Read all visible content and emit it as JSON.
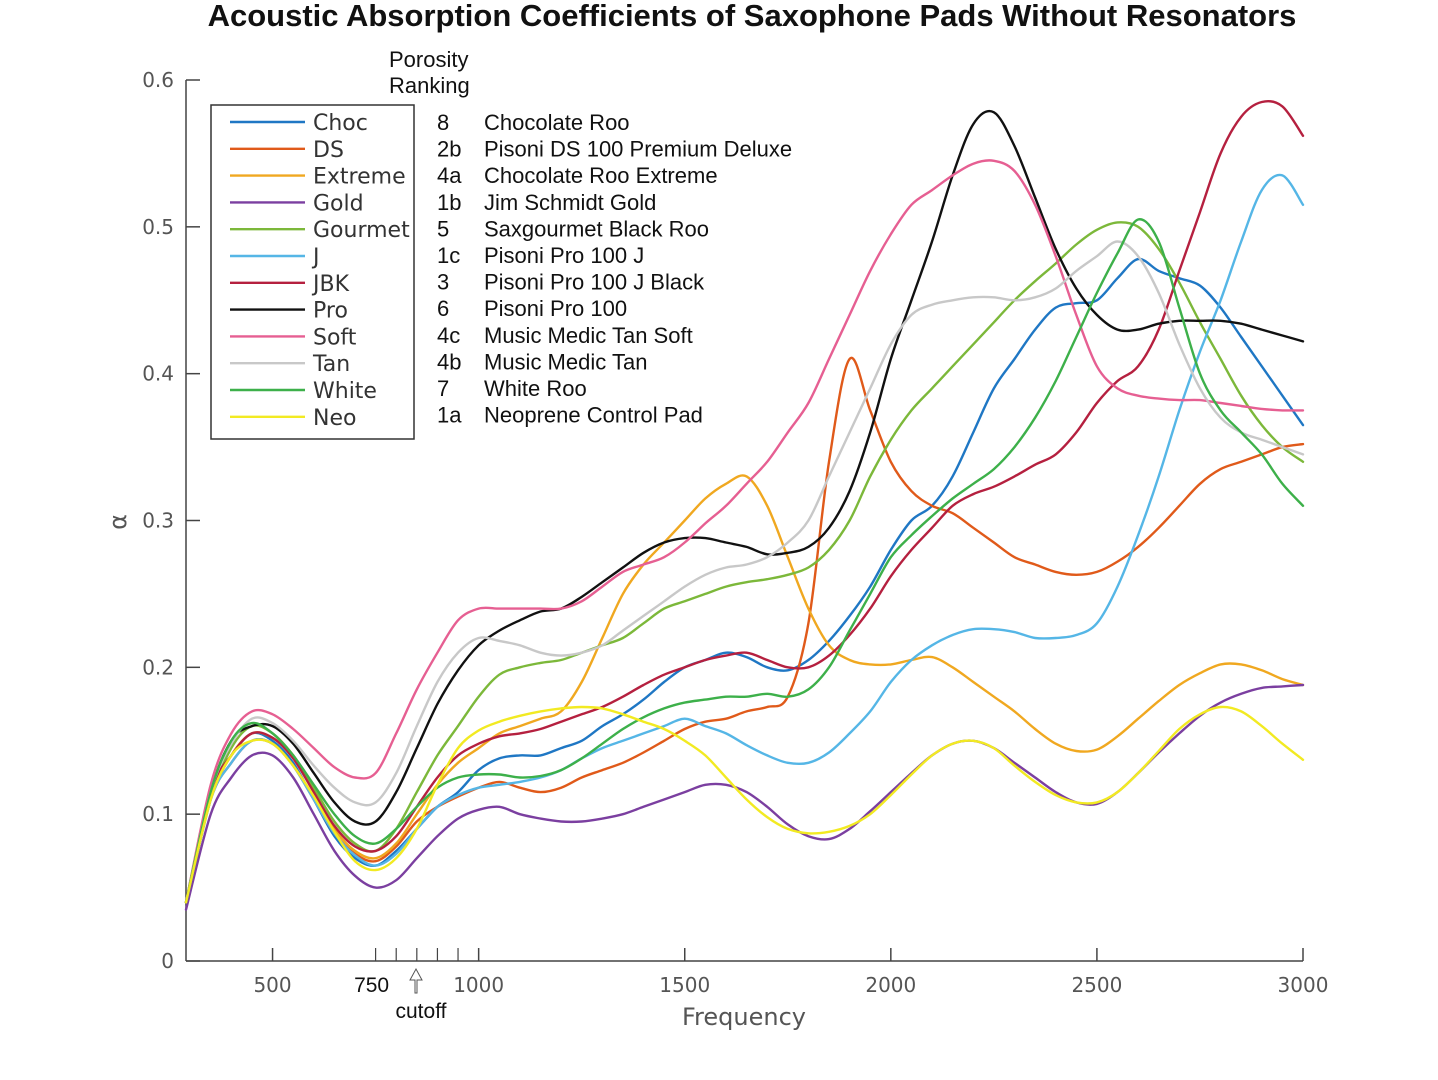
{
  "chart_data": {
    "type": "line",
    "title": "Acoustic Absorption Coefficients of Saxophone Pads Without Resonators",
    "xlabel": "Frequency",
    "ylabel": "α",
    "xlim": [
      290,
      3000
    ],
    "ylim": [
      0,
      0.6
    ],
    "x_ticks": [
      500,
      1000,
      1500,
      2000,
      2500,
      3000
    ],
    "x_tick_labels": [
      "500",
      "1000",
      "1500",
      "2000",
      "2500",
      "3000"
    ],
    "extra_x_tick_label": "750",
    "minor_x_ticks": [
      750,
      800,
      850,
      900,
      950
    ],
    "y_ticks": [
      0,
      0.1,
      0.2,
      0.3,
      0.4,
      0.5,
      0.6
    ],
    "y_tick_labels": [
      "0",
      "0.1",
      "0.2",
      "0.3",
      "0.4",
      "0.5",
      "0.6"
    ],
    "annotation_label": "cutoff",
    "annotation_x": 850,
    "ranking_title_line1": "Porosity",
    "ranking_title_line2": "Ranking",
    "legend_position": "top-left",
    "grid": false,
    "x": [
      290,
      350,
      400,
      450,
      500,
      550,
      600,
      650,
      700,
      750,
      800,
      850,
      900,
      950,
      1000,
      1050,
      1100,
      1150,
      1200,
      1250,
      1300,
      1350,
      1400,
      1450,
      1500,
      1550,
      1600,
      1650,
      1700,
      1750,
      1800,
      1850,
      1900,
      1950,
      2000,
      2050,
      2100,
      2150,
      2200,
      2250,
      2300,
      2350,
      2400,
      2450,
      2500,
      2550,
      2600,
      2650,
      2700,
      2750,
      2800,
      2850,
      2900,
      2950,
      3000
    ],
    "series": [
      {
        "name": "Choc",
        "rank": "8",
        "full_name": "Chocolate Roo",
        "color": "#1f77c4",
        "values": [
          0.04,
          0.115,
          0.14,
          0.155,
          0.15,
          0.135,
          0.11,
          0.085,
          0.07,
          0.065,
          0.075,
          0.09,
          0.105,
          0.115,
          0.13,
          0.138,
          0.14,
          0.14,
          0.145,
          0.15,
          0.16,
          0.168,
          0.178,
          0.19,
          0.2,
          0.205,
          0.21,
          0.207,
          0.2,
          0.198,
          0.205,
          0.218,
          0.235,
          0.255,
          0.28,
          0.3,
          0.31,
          0.33,
          0.36,
          0.39,
          0.41,
          0.43,
          0.445,
          0.448,
          0.45,
          0.465,
          0.478,
          0.47,
          0.465,
          0.46,
          0.445,
          0.425,
          0.405,
          0.385,
          0.365
        ]
      },
      {
        "name": "DS",
        "rank": "2b",
        "full_name": "Pisoni DS 100 Premium Deluxe",
        "color": "#e05a1a",
        "values": [
          0.04,
          0.11,
          0.135,
          0.15,
          0.148,
          0.133,
          0.11,
          0.087,
          0.073,
          0.068,
          0.078,
          0.095,
          0.105,
          0.112,
          0.118,
          0.122,
          0.118,
          0.115,
          0.118,
          0.125,
          0.13,
          0.135,
          0.142,
          0.15,
          0.158,
          0.163,
          0.165,
          0.17,
          0.173,
          0.18,
          0.23,
          0.34,
          0.41,
          0.375,
          0.34,
          0.32,
          0.31,
          0.305,
          0.295,
          0.285,
          0.275,
          0.27,
          0.265,
          0.263,
          0.265,
          0.272,
          0.282,
          0.295,
          0.31,
          0.325,
          0.335,
          0.34,
          0.345,
          0.35,
          0.352
        ]
      },
      {
        "name": "Extreme",
        "rank": "4a",
        "full_name": "Chocolate Roo Extreme",
        "color": "#f0a820",
        "values": [
          0.04,
          0.11,
          0.14,
          0.155,
          0.152,
          0.14,
          0.115,
          0.09,
          0.075,
          0.07,
          0.08,
          0.1,
          0.12,
          0.135,
          0.145,
          0.155,
          0.16,
          0.165,
          0.17,
          0.19,
          0.22,
          0.25,
          0.27,
          0.285,
          0.3,
          0.315,
          0.325,
          0.33,
          0.31,
          0.275,
          0.24,
          0.215,
          0.205,
          0.202,
          0.202,
          0.205,
          0.207,
          0.2,
          0.19,
          0.18,
          0.17,
          0.158,
          0.148,
          0.143,
          0.144,
          0.153,
          0.165,
          0.177,
          0.188,
          0.196,
          0.202,
          0.202,
          0.198,
          0.192,
          0.188
        ]
      },
      {
        "name": "Gold",
        "rank": "1b",
        "full_name": "Jim Schmidt Gold",
        "color": "#7b3fa0",
        "values": [
          0.035,
          0.1,
          0.125,
          0.14,
          0.14,
          0.125,
          0.1,
          0.075,
          0.058,
          0.05,
          0.055,
          0.07,
          0.085,
          0.097,
          0.103,
          0.105,
          0.1,
          0.097,
          0.095,
          0.095,
          0.097,
          0.1,
          0.105,
          0.11,
          0.115,
          0.12,
          0.12,
          0.115,
          0.105,
          0.093,
          0.085,
          0.083,
          0.09,
          0.102,
          0.115,
          0.128,
          0.14,
          0.148,
          0.15,
          0.145,
          0.135,
          0.125,
          0.115,
          0.108,
          0.107,
          0.115,
          0.128,
          0.142,
          0.155,
          0.167,
          0.176,
          0.182,
          0.186,
          0.187,
          0.188
        ]
      },
      {
        "name": "Gourmet",
        "rank": "5",
        "full_name": "Saxgourmet Black Roo",
        "color": "#7cb83a",
        "values": [
          0.04,
          0.11,
          0.145,
          0.16,
          0.155,
          0.14,
          0.118,
          0.095,
          0.08,
          0.075,
          0.09,
          0.115,
          0.14,
          0.16,
          0.18,
          0.195,
          0.2,
          0.203,
          0.205,
          0.21,
          0.215,
          0.22,
          0.23,
          0.24,
          0.245,
          0.25,
          0.255,
          0.258,
          0.26,
          0.263,
          0.268,
          0.28,
          0.3,
          0.33,
          0.355,
          0.375,
          0.39,
          0.405,
          0.42,
          0.435,
          0.45,
          0.463,
          0.475,
          0.488,
          0.498,
          0.503,
          0.5,
          0.485,
          0.462,
          0.435,
          0.41,
          0.385,
          0.365,
          0.35,
          0.34
        ]
      },
      {
        "name": "J",
        "rank": "1c",
        "full_name": "Pisoni Pro 100 J",
        "color": "#55b6e6",
        "values": [
          0.04,
          0.11,
          0.135,
          0.15,
          0.148,
          0.133,
          0.11,
          0.087,
          0.072,
          0.065,
          0.073,
          0.09,
          0.105,
          0.113,
          0.118,
          0.12,
          0.122,
          0.125,
          0.13,
          0.138,
          0.145,
          0.15,
          0.155,
          0.16,
          0.165,
          0.16,
          0.155,
          0.147,
          0.14,
          0.135,
          0.135,
          0.142,
          0.155,
          0.17,
          0.19,
          0.205,
          0.215,
          0.222,
          0.226,
          0.226,
          0.224,
          0.22,
          0.22,
          0.222,
          0.23,
          0.255,
          0.29,
          0.33,
          0.375,
          0.415,
          0.45,
          0.49,
          0.525,
          0.535,
          0.515
        ]
      },
      {
        "name": "JBK",
        "rank": "3",
        "full_name": "Pisoni Pro 100 J Black",
        "color": "#b5203f",
        "values": [
          0.04,
          0.115,
          0.14,
          0.155,
          0.152,
          0.138,
          0.115,
          0.092,
          0.078,
          0.075,
          0.085,
          0.105,
          0.125,
          0.14,
          0.148,
          0.153,
          0.155,
          0.158,
          0.163,
          0.168,
          0.173,
          0.18,
          0.188,
          0.195,
          0.2,
          0.205,
          0.208,
          0.21,
          0.205,
          0.2,
          0.2,
          0.208,
          0.222,
          0.24,
          0.262,
          0.28,
          0.295,
          0.31,
          0.318,
          0.323,
          0.33,
          0.338,
          0.345,
          0.36,
          0.38,
          0.395,
          0.405,
          0.43,
          0.47,
          0.51,
          0.55,
          0.575,
          0.585,
          0.582,
          0.562
        ]
      },
      {
        "name": "Pro",
        "rank": "6",
        "full_name": "Pisoni Pro 100",
        "color": "#111111",
        "values": [
          0.04,
          0.115,
          0.15,
          0.16,
          0.16,
          0.148,
          0.128,
          0.108,
          0.095,
          0.095,
          0.115,
          0.145,
          0.175,
          0.198,
          0.215,
          0.225,
          0.232,
          0.238,
          0.24,
          0.248,
          0.258,
          0.268,
          0.278,
          0.285,
          0.288,
          0.288,
          0.285,
          0.282,
          0.277,
          0.278,
          0.282,
          0.295,
          0.32,
          0.36,
          0.41,
          0.45,
          0.49,
          0.535,
          0.57,
          0.578,
          0.555,
          0.52,
          0.485,
          0.458,
          0.44,
          0.43,
          0.43,
          0.434,
          0.436,
          0.436,
          0.436,
          0.434,
          0.43,
          0.426,
          0.422
        ]
      },
      {
        "name": "Soft",
        "rank": "4c",
        "full_name": "Music Medic Tan Soft",
        "color": "#e65f92",
        "values": [
          0.04,
          0.12,
          0.155,
          0.17,
          0.168,
          0.158,
          0.145,
          0.132,
          0.125,
          0.128,
          0.155,
          0.185,
          0.21,
          0.232,
          0.24,
          0.24,
          0.24,
          0.24,
          0.24,
          0.245,
          0.255,
          0.265,
          0.27,
          0.275,
          0.285,
          0.298,
          0.31,
          0.325,
          0.34,
          0.36,
          0.38,
          0.41,
          0.44,
          0.47,
          0.495,
          0.515,
          0.525,
          0.535,
          0.543,
          0.545,
          0.538,
          0.515,
          0.48,
          0.44,
          0.405,
          0.39,
          0.385,
          0.383,
          0.382,
          0.382,
          0.38,
          0.378,
          0.376,
          0.375,
          0.375
        ]
      },
      {
        "name": "Tan",
        "rank": "4b",
        "full_name": "Music Medic Tan",
        "color": "#c8c8c8",
        "values": [
          0.04,
          0.115,
          0.148,
          0.165,
          0.162,
          0.15,
          0.133,
          0.118,
          0.108,
          0.108,
          0.128,
          0.16,
          0.19,
          0.21,
          0.22,
          0.218,
          0.215,
          0.21,
          0.208,
          0.21,
          0.215,
          0.225,
          0.235,
          0.245,
          0.255,
          0.263,
          0.268,
          0.27,
          0.275,
          0.285,
          0.3,
          0.33,
          0.36,
          0.39,
          0.42,
          0.44,
          0.447,
          0.45,
          0.452,
          0.452,
          0.45,
          0.452,
          0.458,
          0.47,
          0.48,
          0.49,
          0.48,
          0.455,
          0.42,
          0.39,
          0.37,
          0.36,
          0.355,
          0.35,
          0.345
        ]
      },
      {
        "name": "White",
        "rank": "7",
        "full_name": "White Roo",
        "color": "#3db04a",
        "values": [
          0.04,
          0.115,
          0.15,
          0.162,
          0.155,
          0.14,
          0.12,
          0.1,
          0.085,
          0.08,
          0.09,
          0.105,
          0.118,
          0.125,
          0.127,
          0.127,
          0.125,
          0.126,
          0.13,
          0.138,
          0.148,
          0.158,
          0.166,
          0.172,
          0.176,
          0.178,
          0.18,
          0.18,
          0.182,
          0.18,
          0.185,
          0.2,
          0.225,
          0.25,
          0.275,
          0.29,
          0.303,
          0.315,
          0.325,
          0.335,
          0.35,
          0.37,
          0.395,
          0.425,
          0.455,
          0.482,
          0.505,
          0.49,
          0.445,
          0.4,
          0.375,
          0.36,
          0.345,
          0.325,
          0.31
        ]
      },
      {
        "name": "Neo",
        "rank": "1a",
        "full_name": "Neoprene Control Pad",
        "color": "#f2ea22",
        "values": [
          0.04,
          0.11,
          0.14,
          0.15,
          0.148,
          0.133,
          0.112,
          0.088,
          0.068,
          0.062,
          0.07,
          0.09,
          0.12,
          0.145,
          0.157,
          0.163,
          0.167,
          0.17,
          0.172,
          0.173,
          0.172,
          0.168,
          0.163,
          0.158,
          0.15,
          0.14,
          0.125,
          0.11,
          0.098,
          0.09,
          0.087,
          0.088,
          0.092,
          0.1,
          0.113,
          0.127,
          0.14,
          0.148,
          0.15,
          0.145,
          0.133,
          0.122,
          0.113,
          0.108,
          0.108,
          0.115,
          0.128,
          0.143,
          0.158,
          0.168,
          0.173,
          0.17,
          0.16,
          0.148,
          0.137
        ]
      }
    ]
  }
}
